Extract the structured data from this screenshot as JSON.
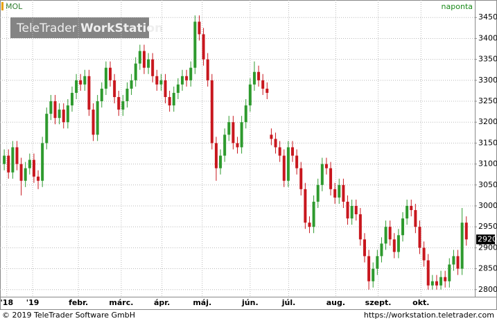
{
  "chart_data": {
    "type": "candlestick",
    "title": "MOL",
    "interval": "naponta",
    "watermark": {
      "brand": "TeleTrader",
      "product": "WorkStation"
    },
    "footer": {
      "copyright": "© 2019 TeleTrader Software GmbH",
      "url": "https://workstation.teletrader.com"
    },
    "up_color": "#2e9a2e",
    "down_color": "#c8171e",
    "grid": true,
    "ylim": [
      2788,
      3462
    ],
    "yticks": [
      2800,
      2850,
      2900,
      2950,
      3000,
      3050,
      3100,
      3150,
      3200,
      3250,
      3300,
      3350,
      3400,
      3450
    ],
    "xlim": [
      0,
      112
    ],
    "xticks": [
      {
        "value": 1.6,
        "label": "'18"
      },
      {
        "value": 7.7,
        "label": "'19"
      },
      {
        "value": 18.5,
        "label": "febr."
      },
      {
        "value": 28.6,
        "label": "márc."
      },
      {
        "value": 38.2,
        "label": "ápr."
      },
      {
        "value": 47.7,
        "label": "máj."
      },
      {
        "value": 59,
        "label": "jún."
      },
      {
        "value": 68.1,
        "label": "júl."
      },
      {
        "value": 79.2,
        "label": "aug."
      },
      {
        "value": 89.2,
        "label": "szept."
      },
      {
        "value": 99.3,
        "label": "okt."
      }
    ],
    "open": [
      3100,
      3120,
      3080,
      3140,
      3100,
      3060,
      3090,
      3110,
      3070,
      3060,
      3150,
      3220,
      3250,
      3210,
      3230,
      3200,
      3240,
      3270,
      3300,
      3290,
      3310,
      3230,
      3170,
      3250,
      3280,
      3330,
      3300,
      3260,
      3230,
      3250,
      3280,
      3300,
      3340,
      3370,
      3330,
      3350,
      3310,
      3290,
      3300,
      3260,
      3240,
      3270,
      3290,
      3310,
      3300,
      3330,
      3440,
      3410,
      3350,
      3300,
      3150,
      3090,
      3120,
      3170,
      3200,
      3150,
      3140,
      3200,
      3240,
      3290,
      3320,
      3300,
      3280,
      3170,
      3160,
      3140,
      3120,
      3060,
      3140,
      3120,
      3090,
      3040,
      2960,
      2950,
      3010,
      3050,
      3100,
      3090,
      3040,
      3020,
      3050,
      3010,
      2970,
      3000,
      2980,
      2920,
      2880,
      2820,
      2850,
      2880,
      2910,
      2950,
      2920,
      2890,
      2930,
      2970,
      3000,
      2990,
      2950,
      2900,
      2870,
      2810,
      2820,
      2810,
      2830,
      2820,
      2860,
      2880,
      2850,
      2960
    ],
    "high": [
      3135,
      3135,
      3155,
      3155,
      3115,
      3105,
      3125,
      3125,
      3085,
      3165,
      3235,
      3265,
      3265,
      3245,
      3245,
      3255,
      3285,
      3315,
      3315,
      3325,
      3325,
      3245,
      3265,
      3295,
      3345,
      3345,
      3315,
      3275,
      3265,
      3295,
      3315,
      3355,
      3385,
      3385,
      3365,
      3365,
      3325,
      3315,
      3315,
      3275,
      3285,
      3305,
      3325,
      3325,
      3345,
      3455,
      3455,
      3425,
      3365,
      3315,
      3165,
      3135,
      3185,
      3215,
      3215,
      3165,
      3215,
      3255,
      3305,
      3345,
      3335,
      3315,
      3295,
      3185,
      3175,
      3155,
      3135,
      3155,
      3155,
      3135,
      3105,
      3055,
      2975,
      3025,
      3065,
      3115,
      3115,
      3105,
      3055,
      3065,
      3065,
      3025,
      3015,
      3015,
      2995,
      2935,
      2895,
      2865,
      2895,
      2925,
      2965,
      2965,
      2935,
      2945,
      2985,
      3015,
      3015,
      3005,
      2965,
      2915,
      2885,
      2835,
      2835,
      2845,
      2845,
      2875,
      2895,
      2895,
      2995,
      2975
    ],
    "low": [
      3085,
      3065,
      3065,
      3085,
      3025,
      3045,
      3075,
      3055,
      3040,
      3045,
      3135,
      3205,
      3195,
      3195,
      3185,
      3185,
      3225,
      3255,
      3275,
      3275,
      3215,
      3155,
      3155,
      3235,
      3265,
      3285,
      3245,
      3215,
      3215,
      3235,
      3265,
      3285,
      3325,
      3315,
      3315,
      3295,
      3275,
      3275,
      3245,
      3225,
      3225,
      3255,
      3275,
      3285,
      3285,
      3315,
      3395,
      3335,
      3285,
      3135,
      3060,
      3075,
      3105,
      3155,
      3135,
      3125,
      3125,
      3185,
      3225,
      3275,
      3285,
      3265,
      3255,
      3145,
      3125,
      3105,
      3045,
      3045,
      3105,
      3075,
      3025,
      2945,
      2935,
      2935,
      2995,
      3035,
      3075,
      3025,
      3005,
      3005,
      2995,
      2955,
      2955,
      2965,
      2905,
      2865,
      2800,
      2805,
      2835,
      2865,
      2895,
      2905,
      2875,
      2875,
      2915,
      2955,
      2975,
      2935,
      2885,
      2855,
      2800,
      2800,
      2800,
      2800,
      2805,
      2805,
      2845,
      2835,
      2835,
      2905
    ],
    "close": [
      3120,
      3080,
      3140,
      3100,
      3060,
      3090,
      3110,
      3070,
      3060,
      3150,
      3220,
      3250,
      3210,
      3230,
      3200,
      3240,
      3270,
      3300,
      3290,
      3310,
      3230,
      3170,
      3250,
      3280,
      3330,
      3300,
      3260,
      3230,
      3250,
      3280,
      3300,
      3340,
      3370,
      3330,
      3350,
      3310,
      3290,
      3300,
      3260,
      3240,
      3270,
      3290,
      3310,
      3300,
      3330,
      3440,
      3410,
      3350,
      3300,
      3150,
      3090,
      3120,
      3170,
      3200,
      3150,
      3140,
      3200,
      3240,
      3290,
      3320,
      3300,
      3280,
      3270,
      3160,
      3140,
      3120,
      3060,
      3140,
      3120,
      3090,
      3040,
      2960,
      2950,
      3010,
      3050,
      3100,
      3090,
      3040,
      3020,
      3050,
      3010,
      2970,
      3000,
      2980,
      2920,
      2880,
      2820,
      2850,
      2880,
      2910,
      2950,
      2920,
      2890,
      2930,
      2970,
      3000,
      2990,
      2950,
      2900,
      2870,
      2810,
      2820,
      2810,
      2830,
      2820,
      2860,
      2880,
      2850,
      2960,
      2920
    ]
  }
}
